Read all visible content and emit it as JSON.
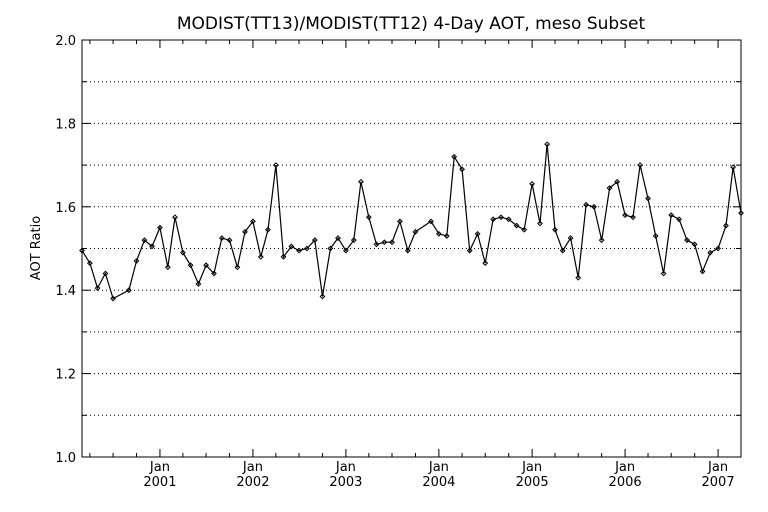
{
  "chart_data": {
    "type": "line",
    "title": "MODIST(TT13)/MODIST(TT12) 4-Day AOT, meso Subset",
    "xlabel": "",
    "ylabel": "AOT Ratio",
    "ylim": [
      1.0,
      2.0
    ],
    "xlim": [
      "2000-03-01",
      "2007-04-01"
    ],
    "grid": "horizontal-dotted",
    "legend": "none",
    "y_ticks": [
      "1.0",
      "1.2",
      "1.4",
      "1.6",
      "1.8",
      "2.0"
    ],
    "x_ticks": [
      {
        "date": "2001-01-01",
        "month": "Jan",
        "year": "2001"
      },
      {
        "date": "2002-01-01",
        "month": "Jan",
        "year": "2002"
      },
      {
        "date": "2003-01-01",
        "month": "Jan",
        "year": "2003"
      },
      {
        "date": "2004-01-01",
        "month": "Jan",
        "year": "2004"
      },
      {
        "date": "2005-01-01",
        "month": "Jan",
        "year": "2005"
      },
      {
        "date": "2006-01-01",
        "month": "Jan",
        "year": "2006"
      },
      {
        "date": "2007-01-01",
        "month": "Jan",
        "year": "2007"
      }
    ],
    "series": [
      {
        "color": "#000000",
        "x": [
          "2000-03-01",
          "2000-04-01",
          "2000-05-01",
          "2000-06-01",
          "2000-07-01",
          "2000-09-01",
          "2000-10-01",
          "2000-11-01",
          "2000-12-01",
          "2001-01-01",
          "2001-02-01",
          "2001-03-01",
          "2001-04-01",
          "2001-05-01",
          "2001-06-01",
          "2001-07-01",
          "2001-08-01",
          "2001-09-01",
          "2001-10-01",
          "2001-11-01",
          "2001-12-01",
          "2002-01-01",
          "2002-02-01",
          "2002-03-01",
          "2002-04-01",
          "2002-05-01",
          "2002-06-01",
          "2002-07-01",
          "2002-08-01",
          "2002-09-01",
          "2002-10-01",
          "2002-11-01",
          "2002-12-01",
          "2003-01-01",
          "2003-02-01",
          "2003-03-01",
          "2003-04-01",
          "2003-05-01",
          "2003-06-01",
          "2003-07-01",
          "2003-08-01",
          "2003-09-01",
          "2003-10-01",
          "2003-12-01",
          "2004-01-01",
          "2004-02-01",
          "2004-03-01",
          "2004-04-01",
          "2004-05-01",
          "2004-06-01",
          "2004-07-01",
          "2004-08-01",
          "2004-09-01",
          "2004-10-01",
          "2004-11-01",
          "2004-12-01",
          "2005-01-01",
          "2005-02-01",
          "2005-03-01",
          "2005-04-01",
          "2005-05-01",
          "2005-06-01",
          "2005-07-01",
          "2005-08-01",
          "2005-09-01",
          "2005-10-01",
          "2005-11-01",
          "2005-12-01",
          "2006-01-01",
          "2006-02-01",
          "2006-03-01",
          "2006-04-01",
          "2006-05-01",
          "2006-06-01",
          "2006-07-01",
          "2006-08-01",
          "2006-09-01",
          "2006-10-01",
          "2006-11-01",
          "2006-12-01",
          "2007-01-01",
          "2007-02-01",
          "2007-03-01",
          "2007-04-01"
        ],
        "values": [
          1.495,
          1.465,
          1.405,
          1.44,
          1.38,
          1.4,
          1.47,
          1.52,
          1.505,
          1.55,
          1.455,
          1.575,
          1.49,
          1.46,
          1.415,
          1.46,
          1.44,
          1.525,
          1.52,
          1.455,
          1.54,
          1.565,
          1.48,
          1.545,
          1.7,
          1.48,
          1.505,
          1.495,
          1.5,
          1.52,
          1.385,
          1.5,
          1.525,
          1.495,
          1.52,
          1.66,
          1.575,
          1.51,
          1.515,
          1.515,
          1.565,
          1.495,
          1.54,
          1.565,
          1.535,
          1.53,
          1.72,
          1.69,
          1.495,
          1.535,
          1.465,
          1.57,
          1.575,
          1.57,
          1.555,
          1.545,
          1.655,
          1.56,
          1.75,
          1.545,
          1.495,
          1.525,
          1.43,
          1.605,
          1.6,
          1.52,
          1.645,
          1.66,
          1.58,
          1.575,
          1.7,
          1.62,
          1.53,
          1.44,
          1.58,
          1.57,
          1.52,
          1.51,
          1.445,
          1.49,
          1.5,
          1.555,
          1.695,
          1.585
        ]
      }
    ]
  }
}
